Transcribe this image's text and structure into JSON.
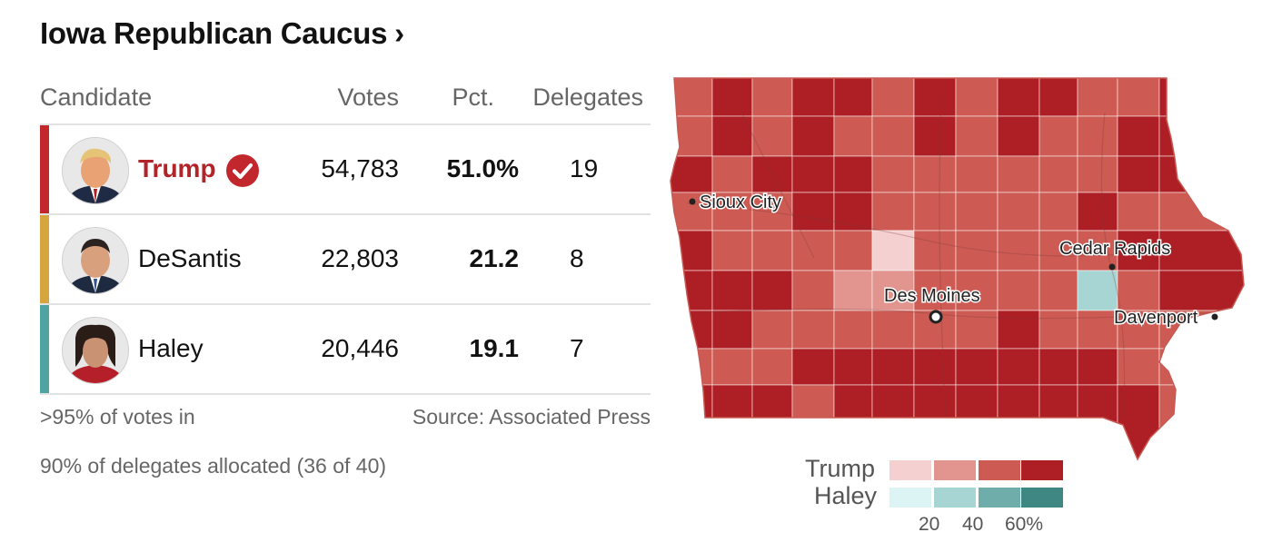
{
  "title": "Iowa Republican Caucus",
  "title_chevron": "›",
  "table": {
    "headers": {
      "candidate": "Candidate",
      "votes": "Votes",
      "pct": "Pct.",
      "delegates": "Delegates"
    },
    "rows": [
      {
        "name": "Trump",
        "votes": "54,783",
        "pct": "51.0%",
        "delegates": "19",
        "color": "#c1272d",
        "winner": true,
        "avatar": "trump-photo"
      },
      {
        "name": "DeSantis",
        "votes": "22,803",
        "pct": "21.2",
        "delegates": "8",
        "color": "#d7a53d",
        "winner": false,
        "avatar": "desantis-photo"
      },
      {
        "name": "Haley",
        "votes": "20,446",
        "pct": "19.1",
        "delegates": "7",
        "color": "#4fa3a1",
        "winner": false,
        "avatar": "haley-photo"
      }
    ]
  },
  "footer": {
    "reporting": ">95% of votes in",
    "source": "Source: Associated Press",
    "delegates_note": "90% of delegates allocated (36 of 40)"
  },
  "map": {
    "state": "Iowa",
    "cities": [
      "Sioux City",
      "Des Moines",
      "Cedar Rapids",
      "Davenport"
    ],
    "legend": {
      "trump_label": "Trump",
      "haley_label": "Haley",
      "trump_colors": [
        "#f4d0d1",
        "#e2958f",
        "#cd5b53",
        "#ad1f24"
      ],
      "haley_colors": [
        "#ddf4f4",
        "#a7d5d3",
        "#6fadab",
        "#3e8783"
      ],
      "ticks": [
        "20",
        "40",
        "60%"
      ]
    }
  }
}
